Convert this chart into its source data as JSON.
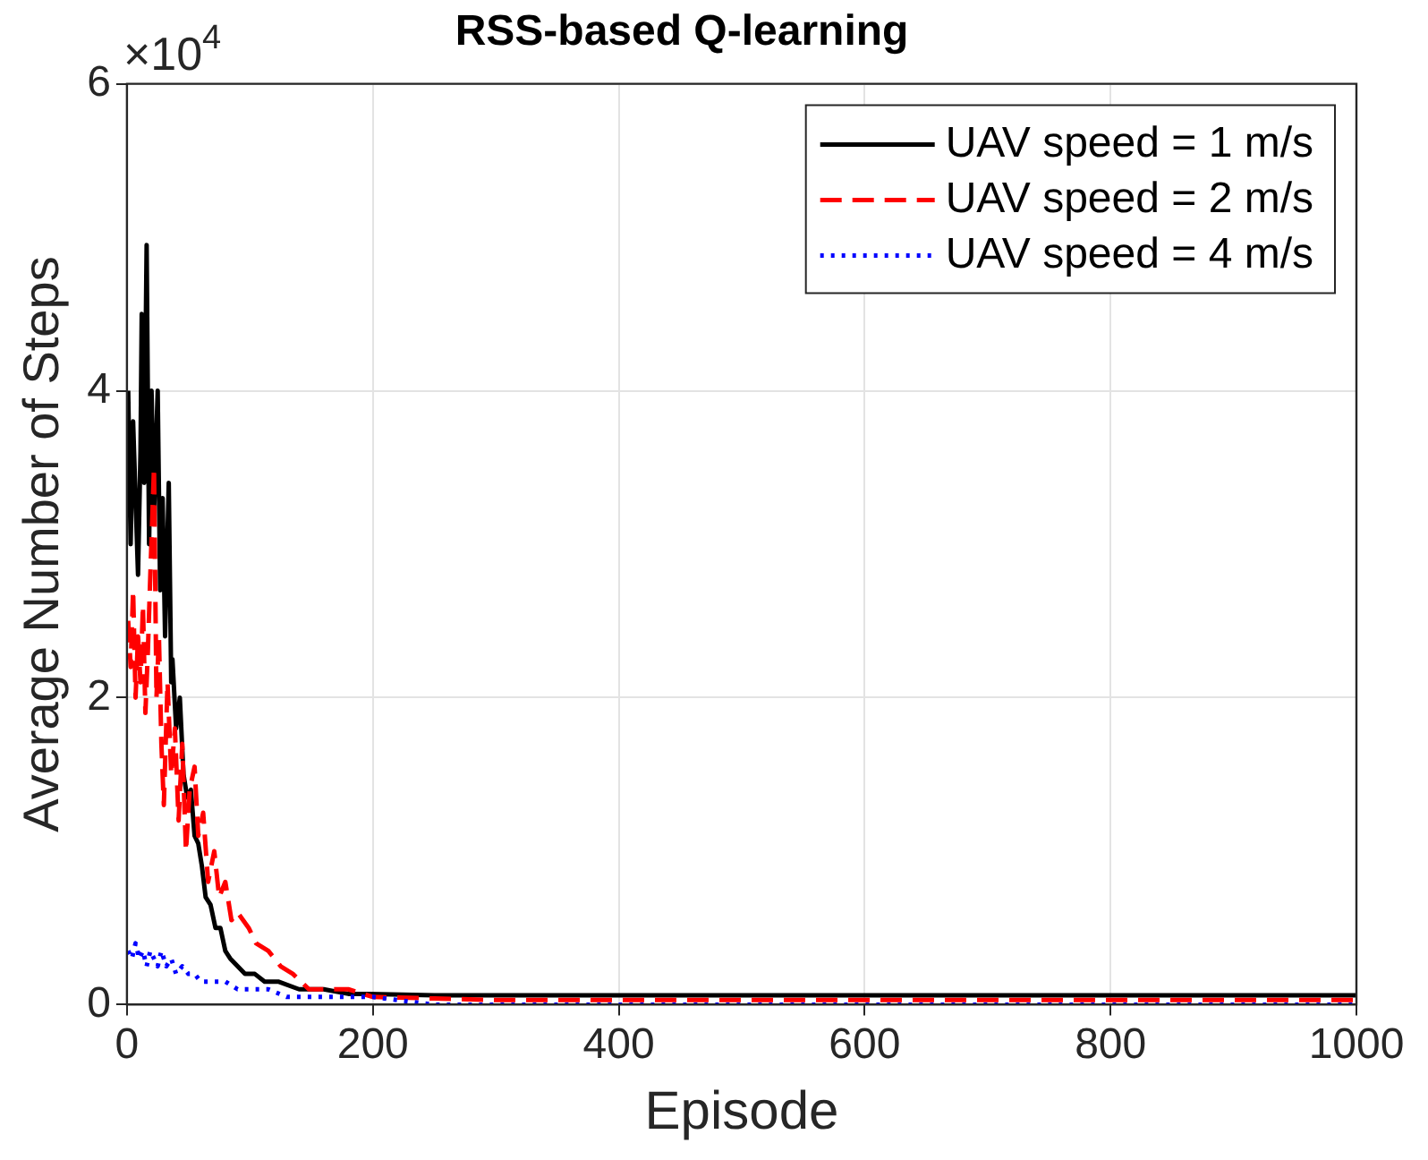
{
  "chart_data": {
    "type": "line",
    "title": "RSS-based Q-learning",
    "xlabel": "Episode",
    "ylabel": "Average Number of Steps",
    "annotations": [
      "×10$^{4}$"
    ],
    "xlim": [
      0,
      1000
    ],
    "xticks": [
      0,
      200,
      400,
      600,
      800,
      1000
    ],
    "ylim": [
      0,
      6
    ],
    "yticks": [
      0,
      2,
      4,
      6
    ],
    "grid": true,
    "legend": "top right",
    "marker": "none",
    "series": [
      {
        "name": "UAV speed = 1 m/s",
        "color": "#000000",
        "line_style": "solid",
        "x": [
          1,
          3,
          5,
          7,
          9,
          11,
          12,
          14,
          16,
          18,
          20,
          22,
          25,
          27,
          29,
          31,
          34,
          36,
          37,
          40,
          43,
          46,
          49,
          52,
          55,
          58,
          61,
          64,
          68,
          72,
          76,
          80,
          84,
          90,
          96,
          104,
          112,
          123,
          140,
          160,
          180,
          197,
          250,
          300,
          400,
          500,
          600,
          700,
          800,
          900,
          1000
        ],
        "values": [
          4.0,
          3.0,
          3.8,
          3.3,
          2.8,
          3.6,
          4.5,
          3.4,
          4.95,
          3.0,
          4.0,
          3.2,
          4.0,
          2.7,
          3.3,
          2.4,
          3.4,
          2.1,
          2.25,
          1.8,
          2.0,
          1.5,
          1.35,
          1.4,
          1.1,
          1.05,
          0.9,
          0.7,
          0.65,
          0.5,
          0.5,
          0.35,
          0.3,
          0.25,
          0.2,
          0.2,
          0.15,
          0.15,
          0.1,
          0.1,
          0.07,
          0.07,
          0.06,
          0.06,
          0.06,
          0.06,
          0.06,
          0.06,
          0.06,
          0.06,
          0.06
        ]
      },
      {
        "name": "UAV speed = 2 m/s",
        "color": "#ff0000",
        "line_style": "dashed",
        "x": [
          1,
          3,
          5,
          7,
          9,
          11,
          13,
          15,
          17,
          19,
          22,
          24,
          26,
          28,
          30,
          33,
          36,
          39,
          42,
          45,
          48,
          51,
          55,
          58,
          62,
          66,
          71,
          75,
          80,
          85,
          90,
          99,
          105,
          115,
          125,
          135,
          148,
          160,
          180,
          200,
          250,
          300,
          400,
          500,
          600,
          700,
          800,
          900,
          1000
        ],
        "values": [
          2.5,
          2.2,
          2.7,
          2.0,
          2.4,
          2.1,
          2.6,
          1.9,
          2.3,
          2.8,
          3.5,
          2.0,
          2.4,
          1.7,
          1.3,
          2.1,
          1.5,
          1.8,
          1.2,
          1.7,
          1.0,
          1.4,
          1.55,
          1.1,
          1.25,
          0.8,
          1.0,
          0.7,
          0.8,
          0.55,
          0.6,
          0.5,
          0.4,
          0.35,
          0.25,
          0.2,
          0.1,
          0.1,
          0.1,
          0.05,
          0.04,
          0.03,
          0.03,
          0.03,
          0.03,
          0.03,
          0.03,
          0.03,
          0.03
        ]
      },
      {
        "name": "UAV speed = 4 m/s",
        "color": "#0000ff",
        "line_style": "dotted",
        "x": [
          1,
          4,
          7,
          10,
          13,
          16,
          19,
          22,
          25,
          28,
          32,
          36,
          40,
          45,
          50,
          55,
          60,
          70,
          80,
          90,
          100,
          115,
          130,
          150,
          175,
          200,
          250,
          300,
          400,
          500,
          600,
          700,
          800,
          900,
          1000
        ],
        "values": [
          0.35,
          0.3,
          0.4,
          0.3,
          0.35,
          0.25,
          0.35,
          0.3,
          0.25,
          0.35,
          0.25,
          0.3,
          0.2,
          0.25,
          0.2,
          0.2,
          0.15,
          0.15,
          0.15,
          0.1,
          0.1,
          0.1,
          0.05,
          0.05,
          0.05,
          0.05,
          0,
          0,
          0,
          0,
          0,
          0,
          0,
          0,
          0
        ]
      }
    ]
  }
}
